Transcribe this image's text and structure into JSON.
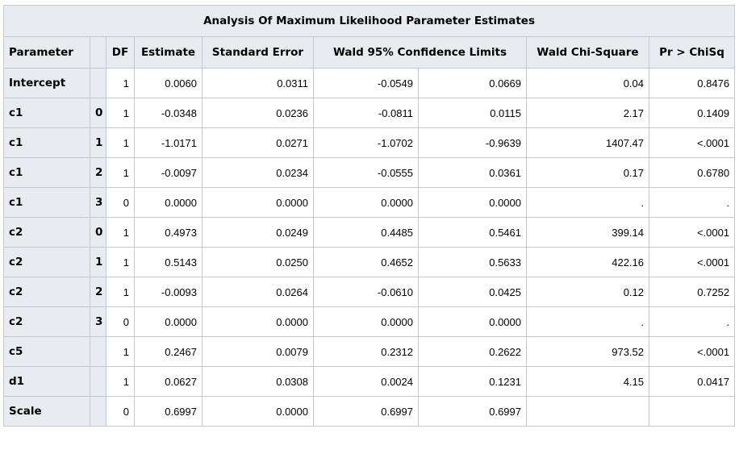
{
  "table": {
    "caption": "Analysis Of Maximum Likelihood Parameter Estimates",
    "headers": {
      "parameter": "Parameter",
      "level": "",
      "df": "DF",
      "estimate": "Estimate",
      "stderr": "Standard Error",
      "wald_limits": "Wald 95% Confidence Limits",
      "wald_chisq": "Wald Chi-Square",
      "p": "Pr > ChiSq"
    },
    "rows": [
      {
        "parameter": "Intercept",
        "level": "",
        "df": "1",
        "estimate": "0.0060",
        "stderr": "0.0311",
        "lower": "-0.0549",
        "upper": "0.0669",
        "chisq": "0.04",
        "p": "0.8476"
      },
      {
        "parameter": "c1",
        "level": "0",
        "df": "1",
        "estimate": "-0.0348",
        "stderr": "0.0236",
        "lower": "-0.0811",
        "upper": "0.0115",
        "chisq": "2.17",
        "p": "0.1409"
      },
      {
        "parameter": "c1",
        "level": "1",
        "df": "1",
        "estimate": "-1.0171",
        "stderr": "0.0271",
        "lower": "-1.0702",
        "upper": "-0.9639",
        "chisq": "1407.47",
        "p": "<.0001"
      },
      {
        "parameter": "c1",
        "level": "2",
        "df": "1",
        "estimate": "-0.0097",
        "stderr": "0.0234",
        "lower": "-0.0555",
        "upper": "0.0361",
        "chisq": "0.17",
        "p": "0.6780"
      },
      {
        "parameter": "c1",
        "level": "3",
        "df": "0",
        "estimate": "0.0000",
        "stderr": "0.0000",
        "lower": "0.0000",
        "upper": "0.0000",
        "chisq": ".",
        "p": "."
      },
      {
        "parameter": "c2",
        "level": "0",
        "df": "1",
        "estimate": "0.4973",
        "stderr": "0.0249",
        "lower": "0.4485",
        "upper": "0.5461",
        "chisq": "399.14",
        "p": "<.0001"
      },
      {
        "parameter": "c2",
        "level": "1",
        "df": "1",
        "estimate": "0.5143",
        "stderr": "0.0250",
        "lower": "0.4652",
        "upper": "0.5633",
        "chisq": "422.16",
        "p": "<.0001"
      },
      {
        "parameter": "c2",
        "level": "2",
        "df": "1",
        "estimate": "-0.0093",
        "stderr": "0.0264",
        "lower": "-0.0610",
        "upper": "0.0425",
        "chisq": "0.12",
        "p": "0.7252"
      },
      {
        "parameter": "c2",
        "level": "3",
        "df": "0",
        "estimate": "0.0000",
        "stderr": "0.0000",
        "lower": "0.0000",
        "upper": "0.0000",
        "chisq": ".",
        "p": "."
      },
      {
        "parameter": "c5",
        "level": "",
        "df": "1",
        "estimate": "0.2467",
        "stderr": "0.0079",
        "lower": "0.2312",
        "upper": "0.2622",
        "chisq": "973.52",
        "p": "<.0001"
      },
      {
        "parameter": "d1",
        "level": "",
        "df": "1",
        "estimate": "0.0627",
        "stderr": "0.0308",
        "lower": "0.0024",
        "upper": "0.1231",
        "chisq": "4.15",
        "p": "0.0417"
      },
      {
        "parameter": "Scale",
        "level": "",
        "df": "0",
        "estimate": "0.6997",
        "stderr": "0.0000",
        "lower": "0.6997",
        "upper": "0.6997",
        "chisq": "",
        "p": ""
      }
    ]
  }
}
